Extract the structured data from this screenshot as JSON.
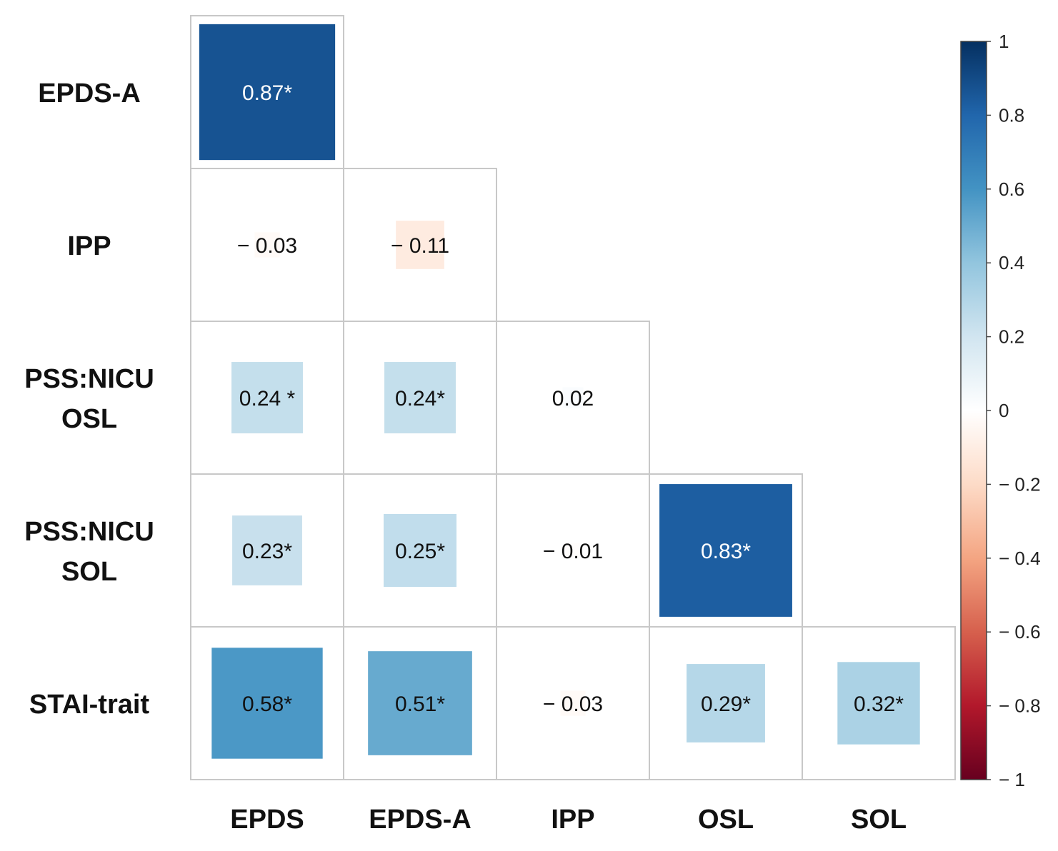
{
  "chart_data": {
    "type": "heatmap",
    "subtype": "lower-triangle correlation matrix (square glyphs sized by |r|)",
    "title": "",
    "row_labels": [
      [
        "EPDS-A"
      ],
      [
        "IPP"
      ],
      [
        "PSS:NICU",
        "OSL"
      ],
      [
        "PSS:NICU",
        "SOL"
      ],
      [
        "STAI-trait"
      ]
    ],
    "col_labels": [
      "EPDS",
      "EPDS-A",
      "IPP",
      "OSL",
      "SOL"
    ],
    "cells": [
      [
        {
          "value": 0.87,
          "label": "0.87*"
        }
      ],
      [
        {
          "value": -0.03,
          "label": "− 0.03"
        },
        {
          "value": -0.11,
          "label": "− 0.11"
        }
      ],
      [
        {
          "value": 0.24,
          "label": "0.24 *"
        },
        {
          "value": 0.24,
          "label": "0.24*"
        },
        {
          "value": 0.02,
          "label": "0.02"
        }
      ],
      [
        {
          "value": 0.23,
          "label": "0.23*"
        },
        {
          "value": 0.25,
          "label": "0.25*"
        },
        {
          "value": -0.01,
          "label": "− 0.01"
        },
        {
          "value": 0.83,
          "label": "0.83*"
        }
      ],
      [
        {
          "value": 0.58,
          "label": "0.58*"
        },
        {
          "value": 0.51,
          "label": "0.51*"
        },
        {
          "value": -0.03,
          "label": "− 0.03"
        },
        {
          "value": 0.29,
          "label": "0.29*"
        },
        {
          "value": 0.32,
          "label": "0.32*"
        }
      ]
    ],
    "colorbar": {
      "range": [
        -1,
        1
      ],
      "ticks": [
        1,
        0.8,
        0.6,
        0.4,
        0.2,
        0,
        -0.2,
        -0.4,
        -0.6,
        -0.8,
        -1
      ],
      "tick_labels": [
        "1",
        "0.8",
        "0.6",
        "0.4",
        "0.2",
        "0",
        "− 0.2",
        "− 0.4",
        "− 0.6",
        "− 0.8",
        "− 1"
      ],
      "colormap": "RdBu",
      "stops": [
        {
          "value": -1,
          "color": "#67001f"
        },
        {
          "value": -0.8,
          "color": "#b2182b"
        },
        {
          "value": -0.6,
          "color": "#d6604d"
        },
        {
          "value": -0.4,
          "color": "#f4a582"
        },
        {
          "value": -0.2,
          "color": "#fddbc7"
        },
        {
          "value": 0,
          "color": "#ffffff"
        },
        {
          "value": 0.2,
          "color": "#d1e5f0"
        },
        {
          "value": 0.4,
          "color": "#92c5de"
        },
        {
          "value": 0.6,
          "color": "#4393c3"
        },
        {
          "value": 0.8,
          "color": "#2166ac"
        },
        {
          "value": 1,
          "color": "#053061"
        }
      ]
    }
  }
}
